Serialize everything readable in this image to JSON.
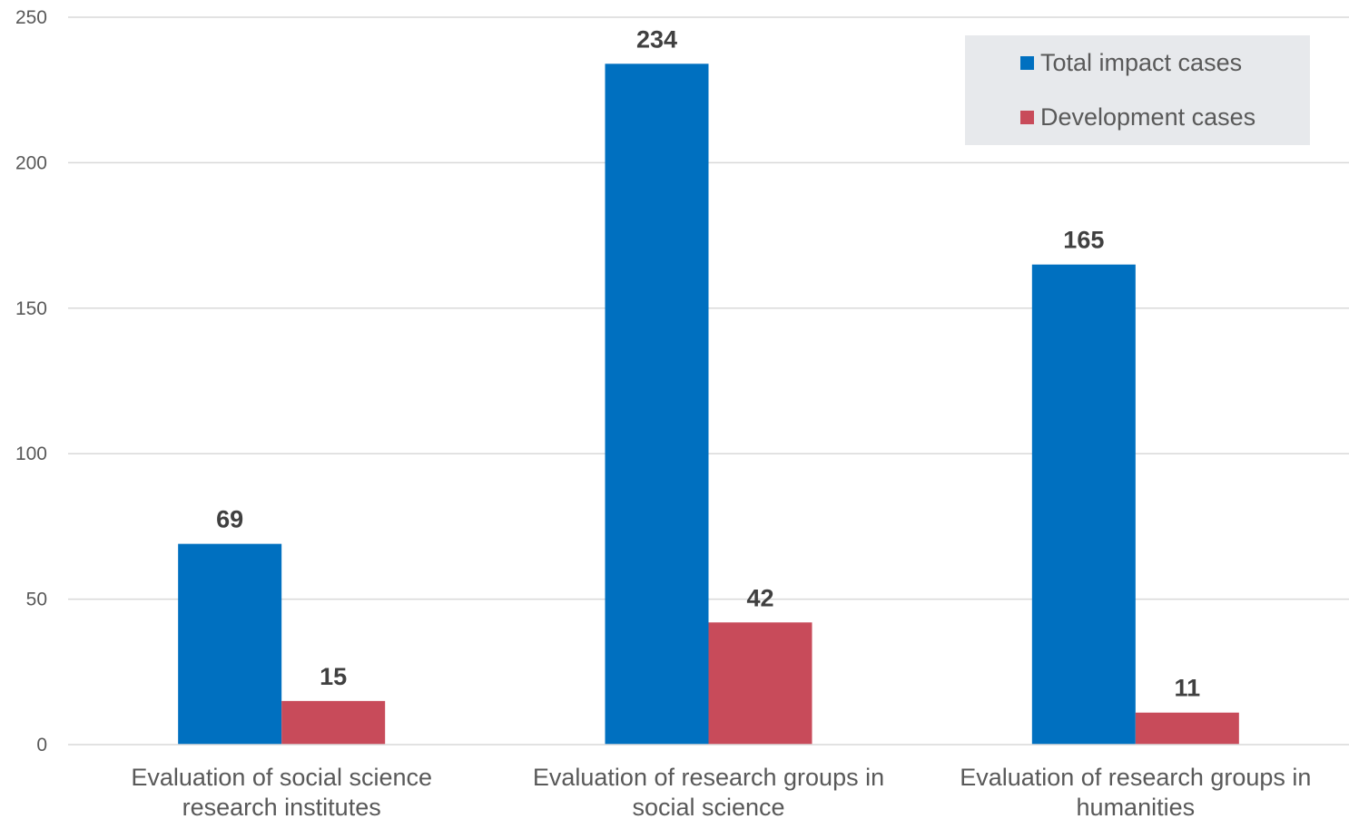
{
  "chart_data": {
    "type": "bar",
    "categories": [
      [
        "Evaluation of social science",
        "research institutes"
      ],
      [
        "Evaluation of research groups in",
        "social science"
      ],
      [
        "Evaluation of research groups in",
        "humanities"
      ]
    ],
    "series": [
      {
        "name": "Total impact cases",
        "color": "#0070C0",
        "values": [
          69,
          234,
          165
        ]
      },
      {
        "name": "Development cases",
        "color": "#C84B5A",
        "values": [
          15,
          42,
          11
        ]
      }
    ],
    "ylim": [
      0,
      250
    ],
    "yticks": [
      0,
      50,
      100,
      150,
      200,
      250
    ],
    "grid": true,
    "legend_position": "top-right",
    "data_labels": true
  }
}
